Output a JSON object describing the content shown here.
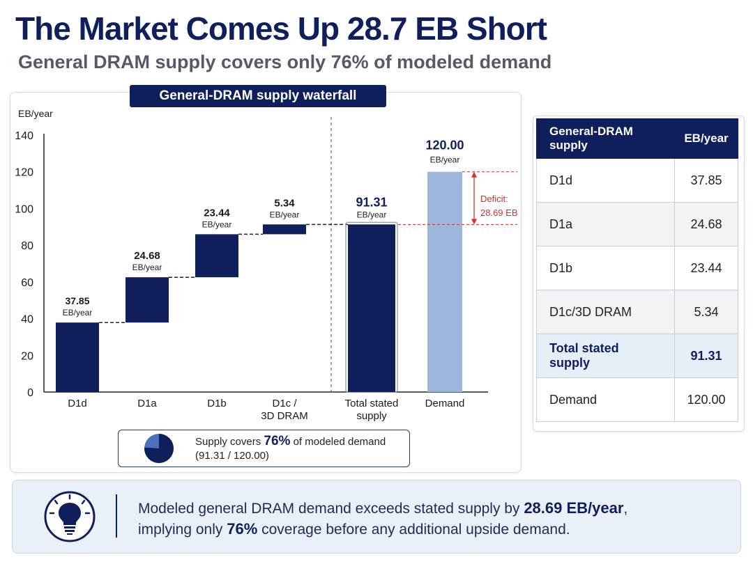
{
  "title": "The Market Comes Up 28.7 EB Short",
  "subtitle": "General DRAM supply covers only 76% of modeled demand",
  "chart_data": {
    "type": "waterfall",
    "title": "General-DRAM supply waterfall",
    "ylabel": "EB/year",
    "ylim": [
      0,
      140
    ],
    "yticks": [
      0,
      20,
      40,
      60,
      80,
      100,
      120,
      140
    ],
    "unit_label": "EB/year",
    "categories": [
      "D1d",
      "D1a",
      "D1b",
      "D1c /\n3D DRAM",
      "Total stated\nsupply",
      "Demand"
    ],
    "steps": [
      {
        "label": "D1d",
        "value": 37.85,
        "value_text": "37.85"
      },
      {
        "label": "D1a",
        "value": 24.68,
        "value_text": "24.68"
      },
      {
        "label": "D1b",
        "value": 23.44,
        "value_text": "23.44"
      },
      {
        "label": "D1c /\n3D DRAM",
        "value": 5.34,
        "value_text": "5.34"
      }
    ],
    "total": {
      "label": "Total stated\nsupply",
      "value": 91.31,
      "value_text": "91.31"
    },
    "demand": {
      "label": "Demand",
      "value": 120.0,
      "value_text": "120.00"
    },
    "deficit": {
      "label": "Deficit:",
      "value_text": "28.69 EB",
      "value": 28.69
    },
    "colors": {
      "bar": "#0f1f5c",
      "demand": "#9db7dc",
      "deficit": "#d32f2f",
      "axis": "#222222",
      "guide": "#4a6fa5"
    }
  },
  "coverage": {
    "prefix": "Supply covers",
    "percent": "76%",
    "suffix": "of modeled demand",
    "detail": "(91.31 / 120.00)",
    "fraction": 0.76
  },
  "table": {
    "headers": [
      "General-DRAM supply",
      "EB/year"
    ],
    "rows": [
      {
        "label": "D1d",
        "value": "37.85"
      },
      {
        "label": "D1a",
        "value": "24.68"
      },
      {
        "label": "D1b",
        "value": "23.44"
      },
      {
        "label": "D1c/3D DRAM",
        "value": "5.34"
      },
      {
        "label": "Total stated supply",
        "value": "91.31"
      },
      {
        "label": "Demand",
        "value": "120.00"
      }
    ]
  },
  "insight": {
    "icon": "lightbulb-icon",
    "line1_pre": "Modeled general DRAM demand exceeds stated supply by ",
    "line1_bold": "28.69 EB/year",
    "line1_post": ",",
    "line2_pre": "implying only ",
    "line2_bold": "76%",
    "line2_post": " coverage before any additional upside demand."
  }
}
